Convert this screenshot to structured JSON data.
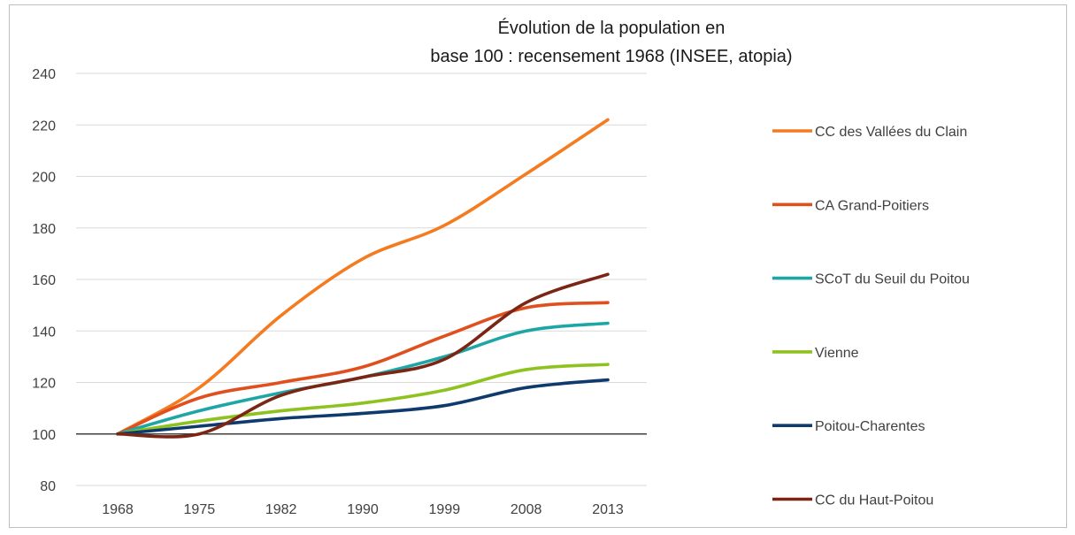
{
  "chart_data": {
    "type": "line",
    "title_lines": [
      "Évolution de la population en",
      "base 100 : recensement 1968 (INSEE, atopia)"
    ],
    "xlabel": "",
    "ylabel": "",
    "categories": [
      "1968",
      "1975",
      "1982",
      "1990",
      "1999",
      "2008",
      "2013"
    ],
    "ylim": [
      80,
      240
    ],
    "yticks": [
      80,
      100,
      120,
      140,
      160,
      180,
      200,
      220,
      240
    ],
    "baseline": 100,
    "grid": true,
    "legend_position": "right",
    "series": [
      {
        "name": "CC des Vallées du Clain",
        "color": "#F47B20",
        "values": [
          100,
          118,
          146,
          168,
          181,
          201,
          222
        ]
      },
      {
        "name": "CA Grand-Poitiers",
        "color": "#E0501E",
        "values": [
          100,
          114,
          120,
          126,
          138,
          149,
          151
        ]
      },
      {
        "name": "SCoT du Seuil du Poitou",
        "color": "#1EA6A6",
        "values": [
          100,
          109,
          116,
          122,
          130,
          140,
          143
        ]
      },
      {
        "name": "Vienne",
        "color": "#8DC21F",
        "values": [
          100,
          105,
          109,
          112,
          117,
          125,
          127
        ]
      },
      {
        "name": "Poitou-Charentes",
        "color": "#0E3A6E",
        "values": [
          100,
          103,
          106,
          108,
          111,
          118,
          121
        ]
      },
      {
        "name": "CC du Haut-Poitou",
        "color": "#7B2514",
        "values": [
          100,
          100,
          115,
          122,
          129,
          151,
          162
        ]
      }
    ]
  }
}
